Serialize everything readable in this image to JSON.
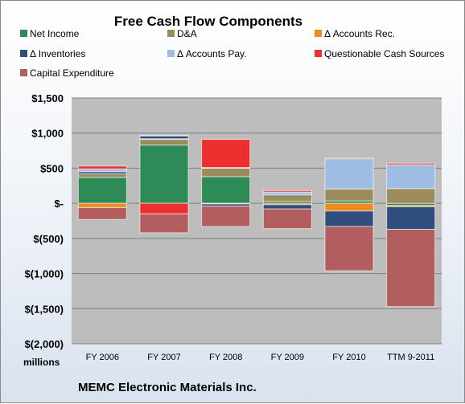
{
  "chart_data": {
    "type": "bar",
    "stacked": true,
    "title": "Free Cash Flow Components",
    "unit_label": "millions",
    "footer": "MEMC Electronic Materials Inc.",
    "categories": [
      "FY 2006",
      "FY 2007",
      "FY 2008",
      "FY 2009",
      "FY 2010",
      "TTM 9-2011"
    ],
    "y_ticks": [
      "$1,500",
      "$1,000",
      "$500",
      "$-",
      "$(500)",
      "$(1,000)",
      "$(1,500)",
      "$(2,000)"
    ],
    "ylim": [
      -2000,
      1500
    ],
    "grid": true,
    "legend_position": "top",
    "series": [
      {
        "name": "Net Income",
        "color": "#2e8b57",
        "values": [
          370,
          830,
          380,
          30,
          35,
          -30
        ]
      },
      {
        "name": "D&A",
        "color": "#9c8c5c",
        "values": [
          50,
          80,
          120,
          90,
          170,
          210
        ]
      },
      {
        "name": "Δ Accounts Rec.",
        "color": "#ee8a1e",
        "values": [
          -60,
          10,
          -10,
          -20,
          -110,
          -20
        ]
      },
      {
        "name": "Δ Inventories",
        "color": "#2f4e7e",
        "values": [
          30,
          40,
          -30,
          -60,
          -220,
          -320
        ]
      },
      {
        "name": "Δ Accounts Pay.",
        "color": "#9fbde3",
        "values": [
          40,
          10,
          10,
          40,
          430,
          340
        ]
      },
      {
        "name": "Questionable Cash Sources",
        "color": "#ee2f2f",
        "values": [
          40,
          -150,
          400,
          20,
          10,
          20
        ]
      },
      {
        "name": "Capital Expenditure",
        "color": "#b35e5e",
        "values": [
          -170,
          -270,
          -290,
          -280,
          -630,
          -1100
        ]
      }
    ]
  }
}
